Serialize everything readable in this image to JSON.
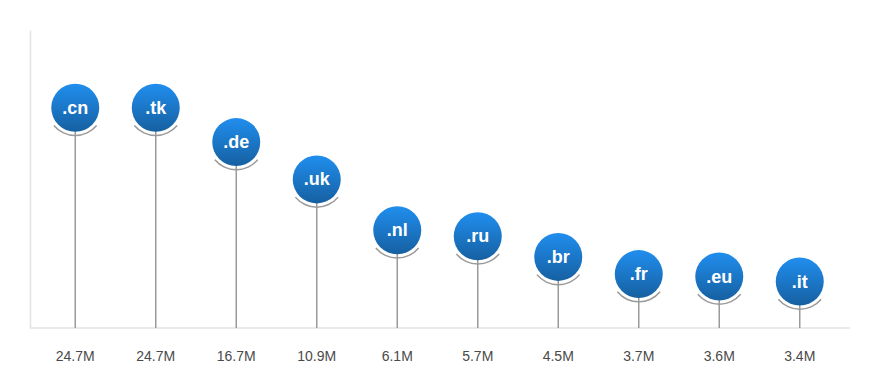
{
  "chart_data": {
    "type": "lollipop",
    "categories": [
      ".cn",
      ".tk",
      ".de",
      ".uk",
      ".nl",
      ".ru",
      ".br",
      ".fr",
      ".eu",
      ".it"
    ],
    "values": [
      24.7,
      24.7,
      16.7,
      10.9,
      6.1,
      5.7,
      4.5,
      3.7,
      3.6,
      3.4
    ],
    "value_labels": [
      "24.7M",
      "24.7M",
      "16.7M",
      "10.9M",
      "6.1M",
      "5.7M",
      "4.5M",
      "3.7M",
      "3.6M",
      "3.4M"
    ],
    "color": "#1a73c0",
    "ylim": [
      2,
      60
    ],
    "log": "y",
    "data_labels": true,
    "tick_labels": false,
    "grid": false
  }
}
